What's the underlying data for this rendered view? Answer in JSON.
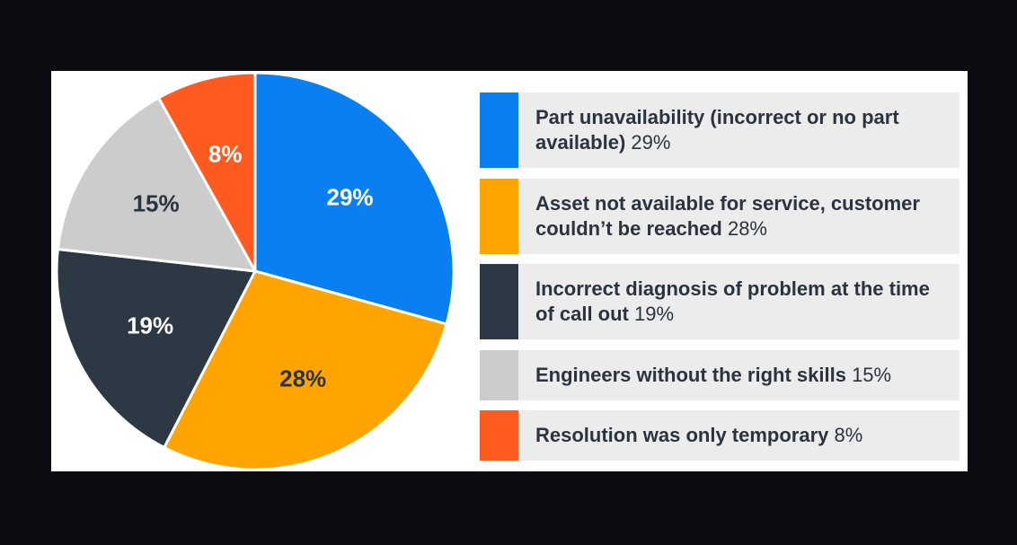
{
  "chart_data": {
    "type": "pie",
    "categories": [
      "Part unavailability (incorrect or no part available)",
      "Asset not available for service, customer couldn’t be reached",
      "Incorrect diagnosis of problem at the time of call out",
      "Engineers without the right skills",
      "Resolution was only temporary"
    ],
    "values": [
      29,
      28,
      19,
      15,
      8
    ],
    "value_labels": [
      "29%",
      "28%",
      "19%",
      "15%",
      "8%"
    ],
    "colors": [
      "#0a7ff2",
      "#ffa400",
      "#2d3845",
      "#cccccc",
      "#ff5a1f"
    ]
  }
}
